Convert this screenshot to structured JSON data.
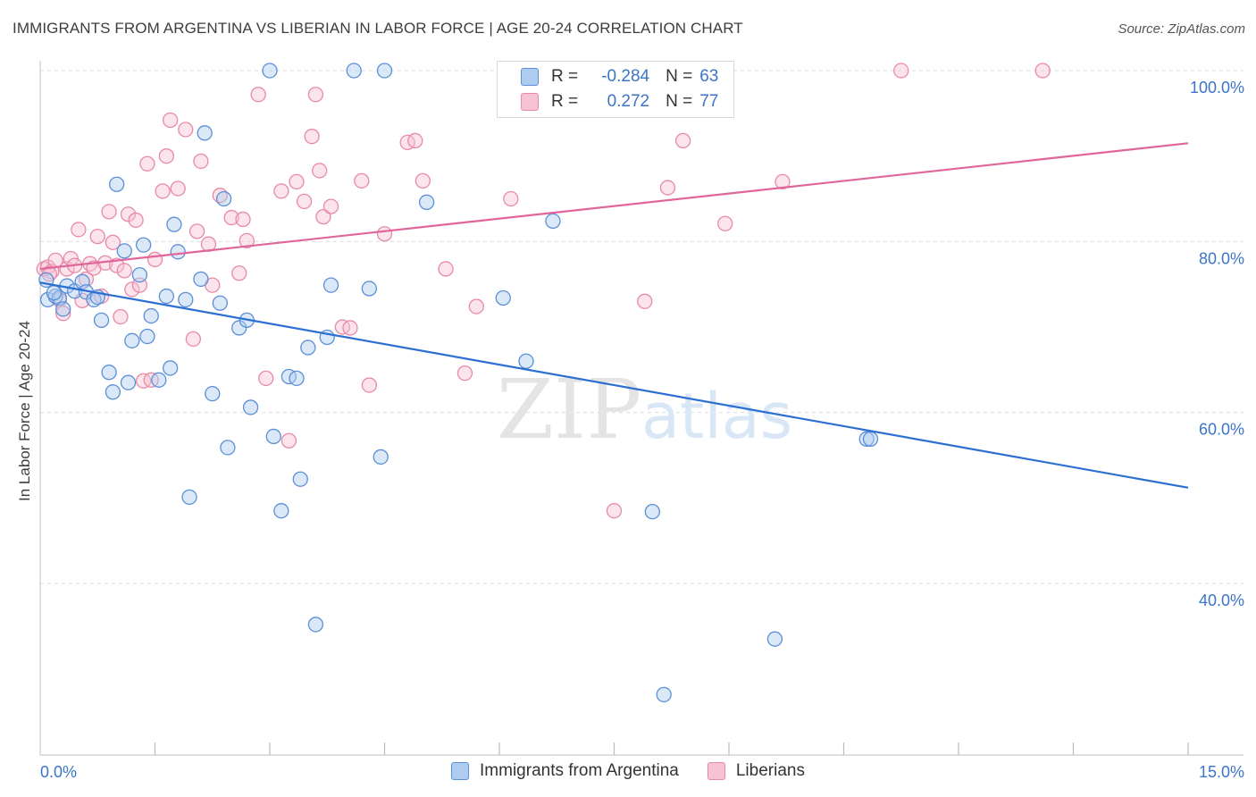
{
  "header": {
    "title": "IMMIGRANTS FROM ARGENTINA VS LIBERIAN IN LABOR FORCE | AGE 20-24 CORRELATION CHART",
    "source": "Source: ZipAtlas.com"
  },
  "watermark": {
    "zip": "ZIP",
    "atlas": "atlas"
  },
  "legend": {
    "rows": [
      {
        "r_label": "R =",
        "r_value": "-0.284",
        "n_label": "N =",
        "n_value": "63"
      },
      {
        "r_label": "R =",
        "r_value": "0.272",
        "n_label": "N =",
        "n_value": "77"
      }
    ]
  },
  "bottom_legend": {
    "items": [
      {
        "label": "Immigrants from Argentina"
      },
      {
        "label": "Liberians"
      }
    ]
  },
  "colors": {
    "blue_fill": "#aecbf0",
    "blue_stroke": "#5b8fd6",
    "blue_line": "#2a6fd1",
    "pink_fill": "#f7c3d3",
    "pink_stroke": "#e889a8",
    "pink_line": "#e0659a",
    "axis_text": "#3b74c8",
    "grid": "#dcdcdc"
  },
  "chart_data": {
    "type": "scatter",
    "title": "IMMIGRANTS FROM ARGENTINA VS LIBERIAN IN LABOR FORCE | AGE 20-24 CORRELATION CHART",
    "xlabel": "",
    "ylabel": "In Labor Force | Age 20-24",
    "xlim": [
      0,
      15
    ],
    "ylim": [
      20,
      102
    ],
    "x_ticks": [
      "0.0%",
      "15.0%"
    ],
    "y_ticks": [
      {
        "value": 40,
        "label": "40.0%"
      },
      {
        "value": 60,
        "label": "60.0%"
      },
      {
        "value": 80,
        "label": "80.0%"
      },
      {
        "value": 100,
        "label": "100.0%"
      }
    ],
    "grid": true,
    "legend_position": "top-center",
    "series": [
      {
        "name": "Immigrants from Argentina",
        "r": -0.284,
        "n": 63,
        "trend": {
          "x": [
            0,
            15
          ],
          "y": [
            75.2,
            51.2
          ]
        },
        "points": [
          [
            0.1,
            73.2
          ],
          [
            0.2,
            73.6
          ],
          [
            0.25,
            73.4
          ],
          [
            0.3,
            72.1
          ],
          [
            0.35,
            74.8
          ],
          [
            0.45,
            74.2
          ],
          [
            0.55,
            75.3
          ],
          [
            0.6,
            74.1
          ],
          [
            0.7,
            73.2
          ],
          [
            0.75,
            73.5
          ],
          [
            0.8,
            70.8
          ],
          [
            0.9,
            64.7
          ],
          [
            0.95,
            62.4
          ],
          [
            1.0,
            86.7
          ],
          [
            1.1,
            78.9
          ],
          [
            1.15,
            63.5
          ],
          [
            1.2,
            68.4
          ],
          [
            1.3,
            76.1
          ],
          [
            1.35,
            79.6
          ],
          [
            1.4,
            68.9
          ],
          [
            1.45,
            71.3
          ],
          [
            1.55,
            63.8
          ],
          [
            1.65,
            73.6
          ],
          [
            1.7,
            65.2
          ],
          [
            1.75,
            82.0
          ],
          [
            1.8,
            78.8
          ],
          [
            1.9,
            73.2
          ],
          [
            1.95,
            50.1
          ],
          [
            2.1,
            75.6
          ],
          [
            2.15,
            92.7
          ],
          [
            2.25,
            62.2
          ],
          [
            2.35,
            72.8
          ],
          [
            2.4,
            85.0
          ],
          [
            2.45,
            55.9
          ],
          [
            2.6,
            69.9
          ],
          [
            2.7,
            70.8
          ],
          [
            2.75,
            60.6
          ],
          [
            3.0,
            100.0
          ],
          [
            3.05,
            57.2
          ],
          [
            3.15,
            48.5
          ],
          [
            3.25,
            64.2
          ],
          [
            3.35,
            64.0
          ],
          [
            3.4,
            52.2
          ],
          [
            3.5,
            67.6
          ],
          [
            3.6,
            35.2
          ],
          [
            3.75,
            68.8
          ],
          [
            3.8,
            74.9
          ],
          [
            4.1,
            100.0
          ],
          [
            4.3,
            74.5
          ],
          [
            4.45,
            54.8
          ],
          [
            4.5,
            100.0
          ],
          [
            5.05,
            84.6
          ],
          [
            6.05,
            73.4
          ],
          [
            6.35,
            66.0
          ],
          [
            6.7,
            82.4
          ],
          [
            8.0,
            48.4
          ],
          [
            8.15,
            27.0
          ],
          [
            8.95,
            100.0
          ],
          [
            9.6,
            33.5
          ],
          [
            10.8,
            56.9
          ],
          [
            10.85,
            56.9
          ],
          [
            0.08,
            75.5
          ],
          [
            0.18,
            74.0
          ]
        ]
      },
      {
        "name": "Liberians",
        "r": 0.272,
        "n": 77,
        "trend": {
          "x": [
            0,
            15
          ],
          "y": [
            76.8,
            91.5
          ]
        },
        "points": [
          [
            0.05,
            76.8
          ],
          [
            0.1,
            77.0
          ],
          [
            0.15,
            76.5
          ],
          [
            0.2,
            77.8
          ],
          [
            0.25,
            73.2
          ],
          [
            0.3,
            71.6
          ],
          [
            0.35,
            76.8
          ],
          [
            0.4,
            78.0
          ],
          [
            0.45,
            77.2
          ],
          [
            0.5,
            81.4
          ],
          [
            0.55,
            73.1
          ],
          [
            0.6,
            75.6
          ],
          [
            0.65,
            77.4
          ],
          [
            0.7,
            76.9
          ],
          [
            0.75,
            80.6
          ],
          [
            0.8,
            73.6
          ],
          [
            0.85,
            77.5
          ],
          [
            0.9,
            83.5
          ],
          [
            0.95,
            79.9
          ],
          [
            1.0,
            77.2
          ],
          [
            1.05,
            71.2
          ],
          [
            1.1,
            76.6
          ],
          [
            1.15,
            83.2
          ],
          [
            1.2,
            74.4
          ],
          [
            1.25,
            82.5
          ],
          [
            1.3,
            74.9
          ],
          [
            1.35,
            63.7
          ],
          [
            1.4,
            89.1
          ],
          [
            1.45,
            63.8
          ],
          [
            1.5,
            77.9
          ],
          [
            1.6,
            85.9
          ],
          [
            1.65,
            90.0
          ],
          [
            1.7,
            94.2
          ],
          [
            1.8,
            86.2
          ],
          [
            1.9,
            93.1
          ],
          [
            2.0,
            68.6
          ],
          [
            2.05,
            81.2
          ],
          [
            2.1,
            89.4
          ],
          [
            2.2,
            79.7
          ],
          [
            2.25,
            74.9
          ],
          [
            2.35,
            85.4
          ],
          [
            2.5,
            82.8
          ],
          [
            2.6,
            76.3
          ],
          [
            2.65,
            82.6
          ],
          [
            2.7,
            80.1
          ],
          [
            2.85,
            97.2
          ],
          [
            2.95,
            64.0
          ],
          [
            3.15,
            85.9
          ],
          [
            3.25,
            56.7
          ],
          [
            3.35,
            87.0
          ],
          [
            3.45,
            84.7
          ],
          [
            3.55,
            92.3
          ],
          [
            3.6,
            97.2
          ],
          [
            3.65,
            88.3
          ],
          [
            3.7,
            82.9
          ],
          [
            3.8,
            84.1
          ],
          [
            3.95,
            70.0
          ],
          [
            4.05,
            69.9
          ],
          [
            4.2,
            87.1
          ],
          [
            4.3,
            63.2
          ],
          [
            4.5,
            80.9
          ],
          [
            4.8,
            91.6
          ],
          [
            4.9,
            91.8
          ],
          [
            5.0,
            87.1
          ],
          [
            5.3,
            76.8
          ],
          [
            5.55,
            64.6
          ],
          [
            5.7,
            72.4
          ],
          [
            6.15,
            85.0
          ],
          [
            7.5,
            48.5
          ],
          [
            7.9,
            73.0
          ],
          [
            8.2,
            86.3
          ],
          [
            8.4,
            91.8
          ],
          [
            8.95,
            82.1
          ],
          [
            9.7,
            87.0
          ],
          [
            11.25,
            100.0
          ],
          [
            13.1,
            100.0
          ],
          [
            0.12,
            76.2
          ]
        ]
      }
    ]
  }
}
